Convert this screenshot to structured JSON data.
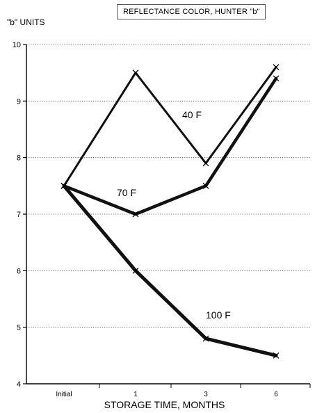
{
  "chart_data": {
    "type": "line",
    "title": "REFLECTANCE COLOR, HUNTER \"b\"",
    "ylabel": "\"b\" UNITS",
    "xlabel": "STORAGE TIME, MONTHS",
    "categories": [
      "Initial",
      "1",
      "3",
      "6"
    ],
    "ylim": [
      4,
      10
    ],
    "yticks": [
      "4",
      "5",
      "6",
      "7",
      "8",
      "9",
      "10"
    ],
    "grid": true,
    "series": [
      {
        "name": "40 F",
        "values": [
          7.5,
          9.5,
          7.9,
          9.6
        ]
      },
      {
        "name": "70 F",
        "values": [
          7.5,
          7.0,
          7.5,
          9.4
        ]
      },
      {
        "name": "100 F",
        "values": [
          7.5,
          6.0,
          4.8,
          4.5
        ]
      }
    ]
  }
}
